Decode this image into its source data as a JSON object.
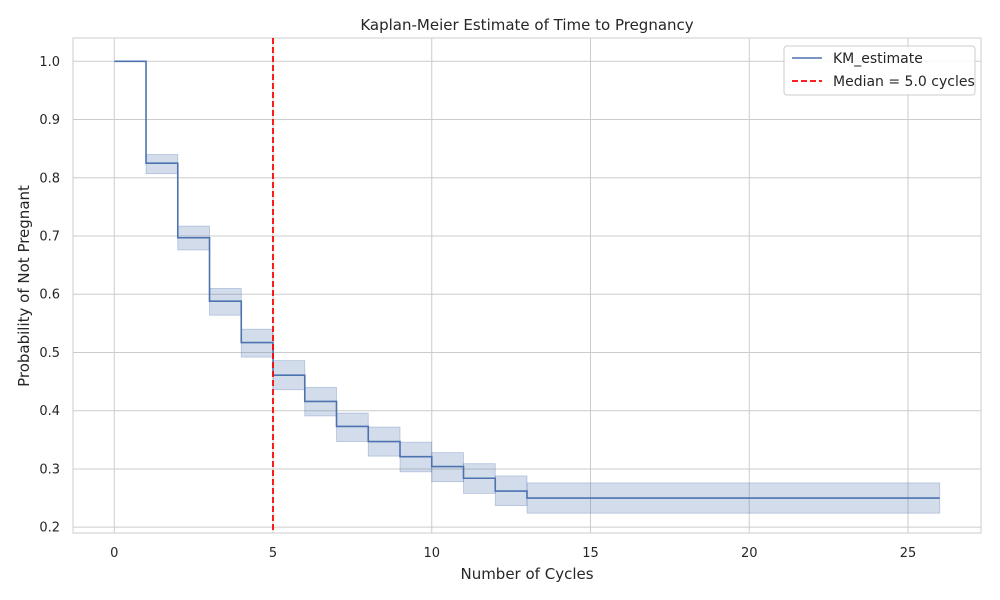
{
  "chart_data": {
    "type": "line",
    "title": "Kaplan-Meier Estimate of Time to Pregnancy",
    "xlabel": "Number of Cycles",
    "ylabel": "Probability of Not Pregnant",
    "xlim": [
      -1.3,
      27.3
    ],
    "ylim": [
      0.19,
      1.04
    ],
    "xticks": [
      0,
      5,
      10,
      15,
      20,
      25
    ],
    "yticks": [
      0.2,
      0.3,
      0.4,
      0.5,
      0.6,
      0.7,
      0.8,
      0.9,
      1.0
    ],
    "grid": true,
    "legend_position": "top-right",
    "series": [
      {
        "name": "KM_estimate",
        "kind": "step",
        "color": "#4c72b0",
        "x": [
          0,
          1,
          2,
          3,
          4,
          5,
          6,
          7,
          8,
          9,
          10,
          11,
          12,
          13,
          26
        ],
        "y": [
          1.0,
          0.825,
          0.697,
          0.588,
          0.517,
          0.461,
          0.416,
          0.373,
          0.347,
          0.321,
          0.304,
          0.284,
          0.262,
          0.25,
          0.25
        ],
        "ci_lower": [
          1.0,
          0.807,
          0.676,
          0.564,
          0.492,
          0.436,
          0.391,
          0.347,
          0.322,
          0.295,
          0.278,
          0.258,
          0.237,
          0.224,
          0.224
        ],
        "ci_upper": [
          1.0,
          0.84,
          0.717,
          0.61,
          0.54,
          0.486,
          0.44,
          0.396,
          0.372,
          0.346,
          0.328,
          0.309,
          0.288,
          0.276,
          0.276
        ]
      },
      {
        "name": "Median = 5.0 cycles",
        "kind": "vline",
        "color": "#ff0000",
        "x": 5.0
      }
    ]
  }
}
